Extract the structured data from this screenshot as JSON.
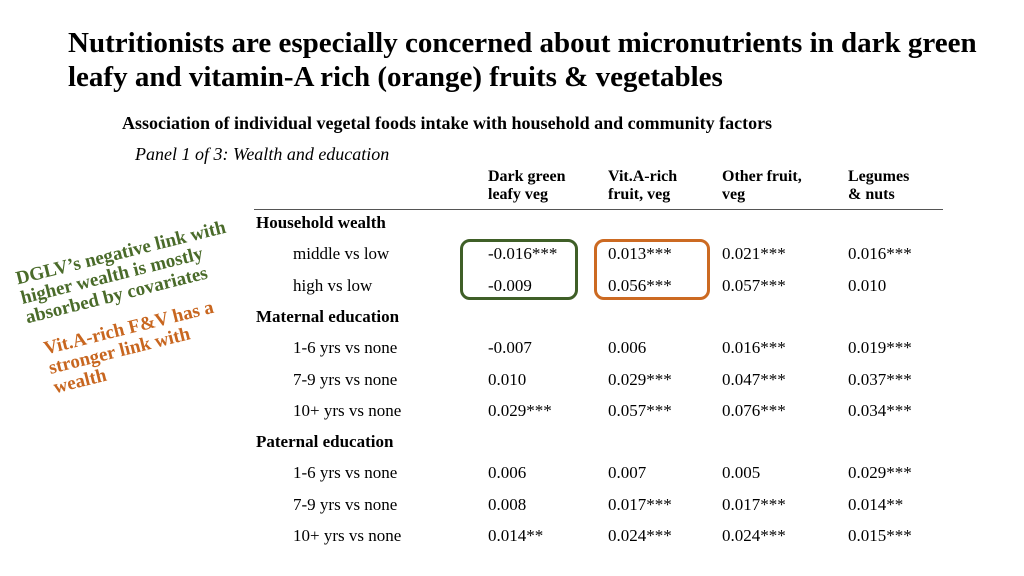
{
  "title": "Nutritionists are especially concerned about micronutrients in dark green leafy and vitamin-A rich (orange) fruits & vegetables",
  "subtitle": "Association of individual vegetal foods intake with household and community factors",
  "panel": "Panel 1 of 3: Wealth and education",
  "columns": [
    {
      "line1": "Dark green",
      "line2": "leafy veg"
    },
    {
      "line1": "Vit.A-rich",
      "line2": "fruit, veg"
    },
    {
      "line1": "Other fruit,",
      "line2": "veg"
    },
    {
      "line1": "Legumes",
      "line2": "& nuts"
    }
  ],
  "groups": [
    {
      "label": "Household wealth",
      "rows": [
        {
          "label": "middle vs low",
          "values": [
            "-0.016***",
            "0.013***",
            "0.021***",
            "0.016***"
          ]
        },
        {
          "label": "high vs low",
          "values": [
            "-0.009",
            "0.056***",
            "0.057***",
            "0.010"
          ]
        }
      ]
    },
    {
      "label": "Maternal education",
      "rows": [
        {
          "label": "1-6 yrs vs none",
          "values": [
            "-0.007",
            "0.006",
            "0.016***",
            "0.019***"
          ]
        },
        {
          "label": "7-9 yrs vs none",
          "values": [
            "0.010",
            "0.029***",
            "0.047***",
            "0.037***"
          ]
        },
        {
          "label": "10+ yrs vs none",
          "values": [
            "0.029***",
            "0.057***",
            "0.076***",
            "0.034***"
          ]
        }
      ]
    },
    {
      "label": "Paternal education",
      "rows": [
        {
          "label": "1-6 yrs vs none",
          "values": [
            "0.006",
            "0.007",
            "0.005",
            "0.029***"
          ]
        },
        {
          "label": "7-9 yrs vs none",
          "values": [
            "0.008",
            "0.017***",
            "0.017***",
            "0.014**"
          ]
        },
        {
          "label": "10+ yrs vs none",
          "values": [
            "0.014**",
            "0.024***",
            "0.024***",
            "0.015***"
          ]
        }
      ]
    }
  ],
  "annotations": {
    "green": {
      "lines": [
        "DGLV’s negative link with",
        "higher wealth is mostly",
        "absorbed by covariates"
      ],
      "color": "#4a6b2a"
    },
    "orange": {
      "lines": [
        "Vit.A-rich F&V has a",
        "stronger link with",
        "wealth"
      ],
      "color": "#c8661f"
    }
  },
  "colors": {
    "green_box": "#3f5f27",
    "orange_box": "#cc6a22"
  }
}
